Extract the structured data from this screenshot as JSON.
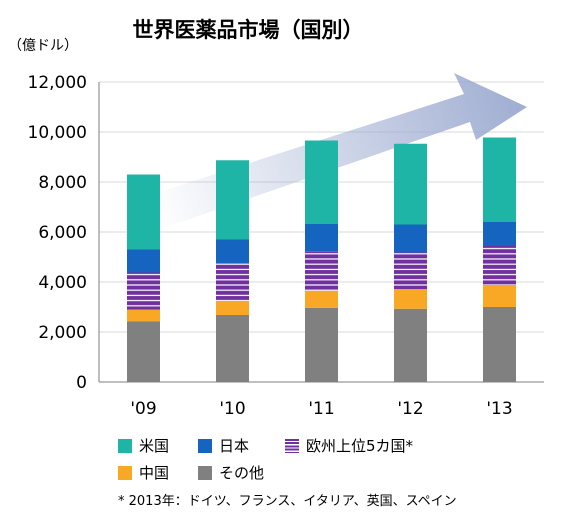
{
  "colors": {
    "us": "#1fb5a6",
    "japan": "#1565c0",
    "europe5": "#7030a0",
    "china": "#f9a825",
    "other": "#808080",
    "grid": "#d9d9d9",
    "arrow": "#9aa9cf"
  },
  "chart_data": {
    "type": "bar",
    "stacked": true,
    "title": "世界医薬品市場（国別）",
    "unit_label": "（億ドル）",
    "categories": [
      "'09",
      "'10",
      "'11",
      "'12",
      "'13"
    ],
    "y_ticks": [
      "0",
      "2,000",
      "4,000",
      "6,000",
      "8,000",
      "10,000",
      "12,000"
    ],
    "ylim": [
      0,
      12000
    ],
    "grid": true,
    "trend_arrow": true,
    "series": [
      {
        "name": "その他",
        "color_key": "other",
        "values": [
          2420,
          2680,
          2970,
          2930,
          3000
        ]
      },
      {
        "name": "中国",
        "color_key": "china",
        "values": [
          480,
          560,
          680,
          790,
          880
        ]
      },
      {
        "name": "欧州上位5カ国*",
        "color_key": "europe5",
        "pattern": "striped",
        "values": [
          1480,
          1520,
          1560,
          1460,
          1560
        ]
      },
      {
        "name": "日本",
        "color_key": "japan",
        "values": [
          920,
          940,
          1110,
          1120,
          960
        ]
      },
      {
        "name": "米国",
        "color_key": "us",
        "values": [
          3000,
          3170,
          3340,
          3230,
          3380
        ]
      }
    ],
    "legend": {
      "row1": [
        "米国",
        "日本",
        "欧州上位5カ国*"
      ],
      "row2": [
        "中国",
        "その他"
      ]
    },
    "footnote": "* 2013年：ドイツ、フランス、イタリア、英国、スペイン"
  }
}
